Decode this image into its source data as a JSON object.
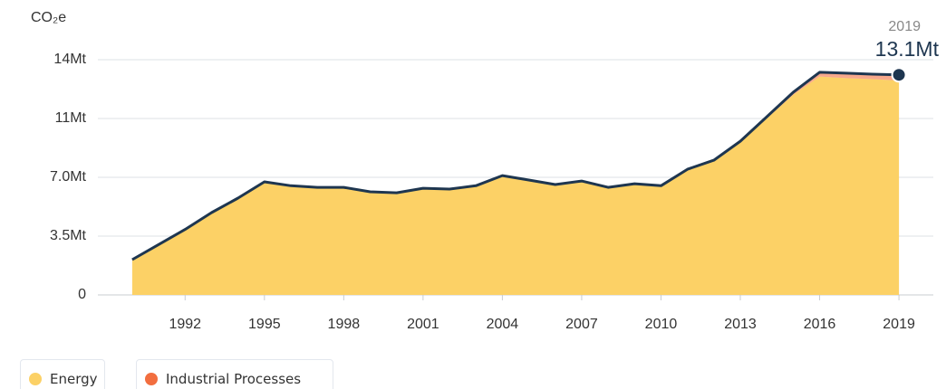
{
  "chart_data": {
    "type": "area",
    "stacked": true,
    "ylabel": "CO₂e",
    "x": [
      1990,
      1991,
      1992,
      1993,
      1994,
      1995,
      1996,
      1997,
      1998,
      1999,
      2000,
      2001,
      2002,
      2003,
      2004,
      2005,
      2006,
      2007,
      2008,
      2009,
      2010,
      2011,
      2012,
      2013,
      2014,
      2015,
      2016,
      2017,
      2018,
      2019
    ],
    "series": [
      {
        "name": "Energy",
        "color": "#fcd166",
        "values": [
          2.05,
          2.95,
          3.85,
          4.85,
          5.71,
          6.68,
          6.45,
          6.35,
          6.35,
          6.09,
          6.03,
          6.3,
          6.25,
          6.45,
          7.05,
          6.79,
          6.52,
          6.73,
          6.35,
          6.57,
          6.45,
          7.43,
          7.97,
          9.1,
          10.5,
          11.91,
          13.0,
          12.9,
          12.84,
          12.76
        ]
      },
      {
        "name": "Industrial Processes",
        "color": "#f26e3f",
        "values": [
          0.05,
          0.05,
          0.05,
          0.05,
          0.05,
          0.05,
          0.05,
          0.05,
          0.05,
          0.05,
          0.05,
          0.05,
          0.05,
          0.05,
          0.05,
          0.05,
          0.05,
          0.05,
          0.05,
          0.05,
          0.05,
          0.05,
          0.05,
          0.05,
          0.1,
          0.15,
          0.25,
          0.3,
          0.3,
          0.34
        ]
      }
    ],
    "line_color": "#1e3650",
    "annotation": {
      "value": 13.1,
      "label": "13.1Mt"
    },
    "xlim": [
      1988.7,
      2020.3
    ],
    "xticks": [
      1992,
      1995,
      1998,
      2001,
      2004,
      2007,
      2010,
      2013,
      2016,
      2019
    ],
    "ylim": [
      0,
      14
    ],
    "yticks": [
      0,
      {
        "value": 3.5,
        "label": "3.5Mt"
      },
      {
        "value": 7,
        "label": "7.0Mt"
      },
      {
        "value": 10.5,
        "label": "11Mt"
      },
      {
        "value": 14,
        "label": "14Mt"
      }
    ],
    "grid": true
  }
}
